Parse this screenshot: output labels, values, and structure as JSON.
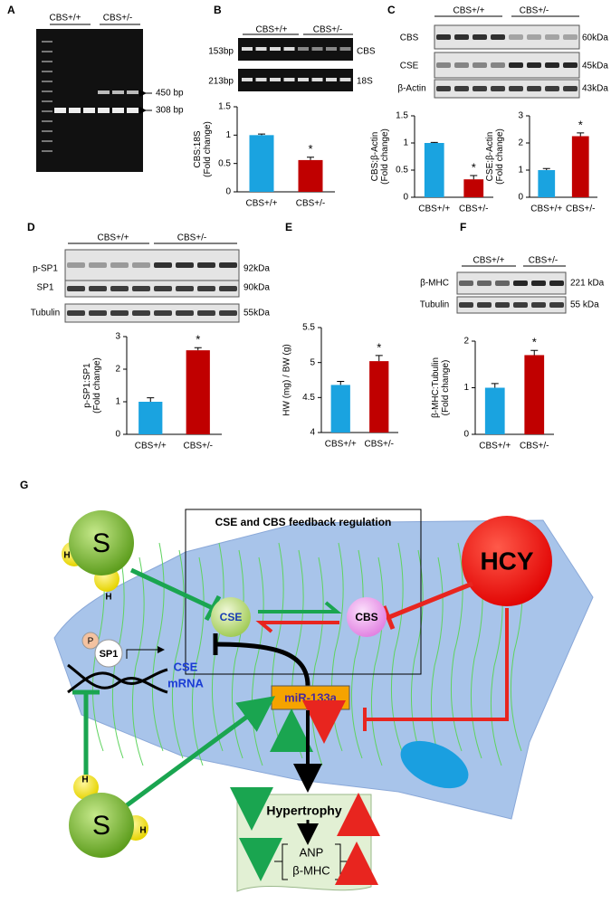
{
  "panels": {
    "A": {
      "letter": "A",
      "groups": [
        "CBS+/+",
        "CBS+/-"
      ],
      "markers": [
        "450 bp",
        "308 bp"
      ]
    },
    "B": {
      "letter": "B",
      "groups": [
        "CBS+/+",
        "CBS+/-"
      ],
      "bands": [
        {
          "size": "153bp",
          "name": "CBS"
        },
        {
          "size": "213bp",
          "name": "18S"
        }
      ]
    },
    "C": {
      "letter": "C",
      "groups": [
        "CBS+/+",
        "CBS+/-"
      ],
      "bands": [
        {
          "name": "CBS",
          "size": "60kDa"
        },
        {
          "name": "CSE",
          "size": "45kDa"
        },
        {
          "name": "β-Actin",
          "size": "43kDa"
        }
      ]
    },
    "D": {
      "letter": "D",
      "groups": [
        "CBS+/+",
        "CBS+/-"
      ],
      "bands": [
        {
          "name": "p-SP1",
          "size": "92kDa"
        },
        {
          "name": "SP1",
          "size": "90kDa"
        },
        {
          "name": "Tubulin",
          "size": "55kDa"
        }
      ]
    },
    "E": {
      "letter": "E"
    },
    "F": {
      "letter": "F",
      "groups": [
        "CBS+/+",
        "CBS+/-"
      ],
      "bands": [
        {
          "name": "β-MHC",
          "size": "221 kDa"
        },
        {
          "name": "Tubulin",
          "size": "55 kDa"
        }
      ]
    },
    "G": {
      "letter": "G"
    }
  },
  "chart_data": [
    {
      "type": "bar",
      "ylabel": [
        "CBS:18S",
        "(Fold change)"
      ],
      "categories": [
        "CBS+/+",
        "CBS+/-"
      ],
      "values": [
        1.0,
        0.56
      ],
      "errors": [
        0.02,
        0.05
      ],
      "colors": [
        "#1aa3e0",
        "#c00000"
      ],
      "ylim": [
        0,
        1.5
      ],
      "yticks": [
        0,
        0.5,
        1,
        1.5
      ],
      "annotation": "*",
      "annotation_category": "CBS+/-"
    },
    {
      "type": "bar",
      "ylabel": [
        "CBS:β-Actin",
        "(Fold change)"
      ],
      "categories": [
        "CBS+/+",
        "CBS+/-"
      ],
      "values": [
        1.0,
        0.33
      ],
      "errors": [
        0.01,
        0.07
      ],
      "colors": [
        "#1aa3e0",
        "#c00000"
      ],
      "ylim": [
        0,
        1.5
      ],
      "yticks": [
        0,
        0.5,
        1,
        1.5
      ],
      "annotation": "*",
      "annotation_category": "CBS+/-"
    },
    {
      "type": "bar",
      "ylabel": [
        "CSE:β-Actin",
        "(Fold change)"
      ],
      "categories": [
        "CBS+/+",
        "CBS+/-"
      ],
      "values": [
        1.0,
        2.25
      ],
      "errors": [
        0.06,
        0.12
      ],
      "colors": [
        "#1aa3e0",
        "#c00000"
      ],
      "ylim": [
        0,
        3
      ],
      "yticks": [
        0,
        1,
        2,
        3
      ],
      "annotation": "*",
      "annotation_category": "CBS+/-"
    },
    {
      "type": "bar",
      "ylabel": [
        "p-SP1:SP1",
        "(Fold change)"
      ],
      "categories": [
        "CBS+/+",
        "CBS+/-"
      ],
      "values": [
        1.0,
        2.58
      ],
      "errors": [
        0.12,
        0.08
      ],
      "colors": [
        "#1aa3e0",
        "#c00000"
      ],
      "ylim": [
        0,
        3
      ],
      "yticks": [
        0,
        1,
        2,
        3
      ],
      "annotation": "*",
      "annotation_category": "CBS+/-"
    },
    {
      "type": "bar",
      "ylabel": [
        "HW (mg) / BW (g)"
      ],
      "categories": [
        "CBS+/+",
        "CBS+/-"
      ],
      "values": [
        4.68,
        5.02
      ],
      "errors": [
        0.05,
        0.08
      ],
      "colors": [
        "#1aa3e0",
        "#c00000"
      ],
      "ylim": [
        4,
        5.5
      ],
      "yticks": [
        4,
        4.5,
        5,
        5.5
      ],
      "annotation": "*",
      "annotation_category": "CBS+/-"
    },
    {
      "type": "bar",
      "ylabel": [
        "β-MHC:Tubulin",
        "(Fold change)"
      ],
      "categories": [
        "CBS+/+",
        "CBS+/-"
      ],
      "values": [
        1.0,
        1.7
      ],
      "errors": [
        0.09,
        0.1
      ],
      "colors": [
        "#1aa3e0",
        "#c00000"
      ],
      "ylim": [
        0,
        2
      ],
      "yticks": [
        0,
        1,
        2
      ],
      "annotation": "*",
      "annotation_category": "CBS+/-"
    }
  ],
  "diagram": {
    "title": "CSE and CBS feedback regulation",
    "hcy": "HCY",
    "donor_top": {
      "s": "S",
      "h": [
        "H",
        "H"
      ]
    },
    "donor_bottom": {
      "s": "S",
      "h": [
        "H",
        "H"
      ]
    },
    "cse": "CSE",
    "cbs": "CBS",
    "phospho": "P",
    "sp1": "SP1",
    "mrna": [
      "CSE",
      "mRNA"
    ],
    "mirna": "miR-133a",
    "hypertrophy": "Hypertrophy",
    "markers": [
      "ANP",
      "β-MHC"
    ]
  }
}
